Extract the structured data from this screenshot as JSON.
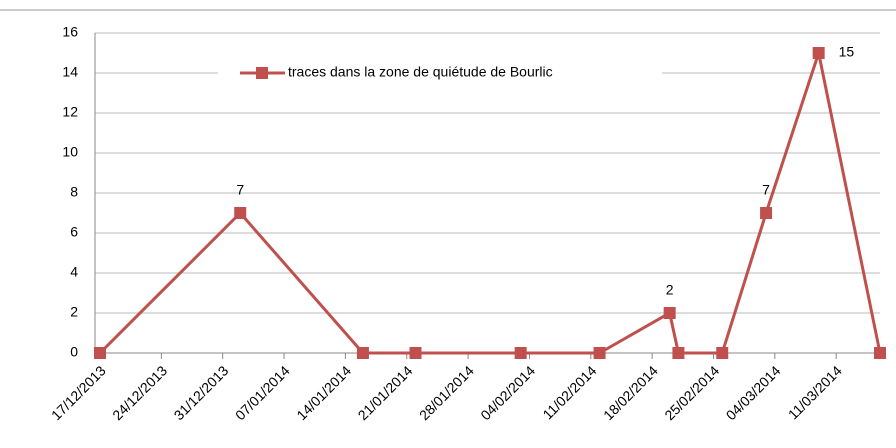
{
  "chart_data": {
    "type": "line",
    "x": [
      "2013-12-17",
      "2014-01-02",
      "2014-01-16",
      "2014-01-22",
      "2014-02-03",
      "2014-02-12",
      "2014-02-20",
      "2014-02-21",
      "2014-02-26",
      "2014-03-03",
      "2014-03-09",
      "2014-03-16"
    ],
    "series": [
      {
        "name": "traces dans la zone de quiétude de Bourlic",
        "color": "#c0504d",
        "values": [
          0,
          7,
          0,
          0,
          0,
          0,
          2,
          0,
          0,
          7,
          15,
          0
        ]
      }
    ],
    "data_labels": "nonzero",
    "xlim": [
      "2013-12-17",
      "2014-03-16"
    ],
    "xticks": [
      {
        "value": "2013-12-17",
        "label": "17/12/2013"
      },
      {
        "value": "2013-12-24",
        "label": "24/12/2013"
      },
      {
        "value": "2013-12-31",
        "label": "31/12/2013"
      },
      {
        "value": "2014-01-07",
        "label": "07/01/2014"
      },
      {
        "value": "2014-01-14",
        "label": "14/01/2014"
      },
      {
        "value": "2014-01-21",
        "label": "21/01/2014"
      },
      {
        "value": "2014-01-28",
        "label": "28/01/2014"
      },
      {
        "value": "2014-02-04",
        "label": "04/02/2014"
      },
      {
        "value": "2014-02-11",
        "label": "11/02/2014"
      },
      {
        "value": "2014-02-18",
        "label": "18/02/2014"
      },
      {
        "value": "2014-02-25",
        "label": "25/02/2014"
      },
      {
        "value": "2014-03-04",
        "label": "04/03/2014"
      },
      {
        "value": "2014-03-11",
        "label": "11/03/2014"
      }
    ],
    "ylim": [
      0,
      16
    ],
    "yticks": [
      0,
      2,
      4,
      6,
      8,
      10,
      12,
      14,
      16
    ],
    "grid": true,
    "legend": "top"
  }
}
